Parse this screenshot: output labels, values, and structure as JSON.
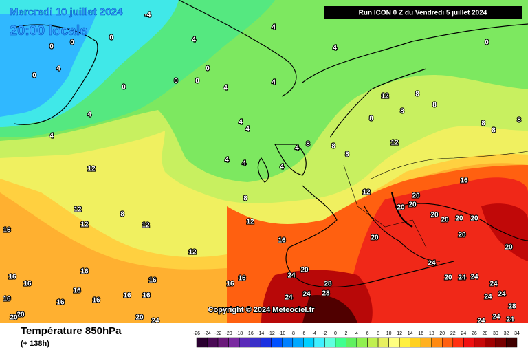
{
  "map": {
    "title": "Mercredi 10 juillet 2024",
    "time": "20:00 locale",
    "run": "Run ICON 0 Z du Vendredi 5 juillet 2024",
    "copyright": "Copyright © 2024 Meteociel.fr",
    "variable": "Température 850hPa",
    "lead": "(+ 138h)",
    "contour_labels": [
      -4,
      0,
      0,
      0,
      4,
      0,
      0,
      4,
      4,
      4,
      4,
      4,
      0,
      0,
      0,
      0,
      4,
      4,
      4,
      4,
      4,
      4,
      4,
      4,
      8,
      8,
      8,
      8,
      8,
      8,
      8,
      8,
      8,
      8,
      12,
      12,
      12,
      16,
      20,
      20,
      20,
      20,
      20,
      20,
      20,
      20,
      20,
      20,
      16,
      12,
      8,
      8,
      12,
      12,
      12,
      12,
      12,
      16,
      16,
      16,
      16,
      16,
      16,
      16,
      16,
      16,
      16,
      16,
      16,
      16,
      20,
      20,
      20,
      24,
      20,
      24,
      28,
      28,
      24,
      24,
      24,
      20,
      24,
      24,
      24,
      24,
      24,
      28,
      24,
      24,
      24
    ],
    "colorbar": {
      "labels": [
        -26,
        -24,
        -22,
        -20,
        -18,
        -16,
        -14,
        -12,
        -10,
        -8,
        -6,
        -4,
        -2,
        0,
        2,
        4,
        6,
        8,
        10,
        12,
        14,
        16,
        18,
        20,
        22,
        24,
        26,
        28,
        30,
        32,
        34
      ],
      "colors": [
        "#2a0030",
        "#4a0a55",
        "#6a1a7a",
        "#7a2aa0",
        "#5a2ab8",
        "#3a30c8",
        "#1a30e0",
        "#0050ff",
        "#0080ff",
        "#00a8ff",
        "#00d0ff",
        "#40f0ff",
        "#60ffe0",
        "#40ff90",
        "#60f060",
        "#90f050",
        "#c0f050",
        "#e8f060",
        "#ffff80",
        "#fff040",
        "#ffd020",
        "#ffb020",
        "#ff8a10",
        "#ff6010",
        "#ff3010",
        "#f01010",
        "#c80808",
        "#a00000",
        "#780000",
        "#400000"
      ]
    }
  }
}
